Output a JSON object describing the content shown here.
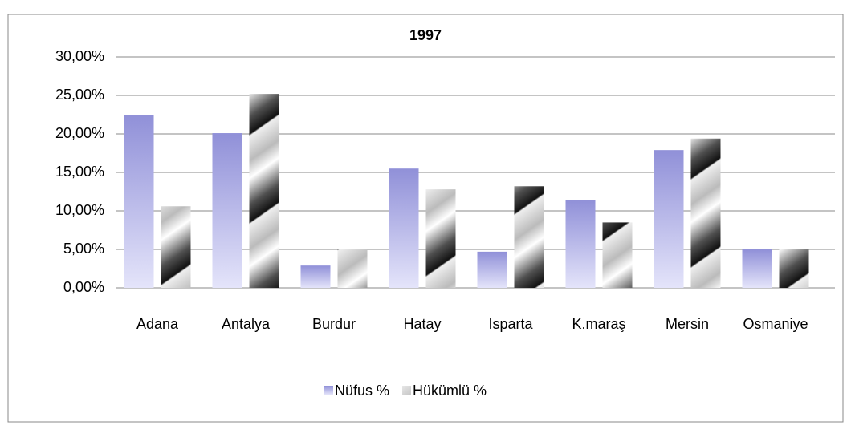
{
  "chart_data": {
    "type": "bar",
    "title": "1997",
    "categories": [
      "Adana",
      "Antalya",
      "Burdur",
      "Hatay",
      "Isparta",
      "K.maraş",
      "Mersin",
      "Osmaniye"
    ],
    "series": [
      {
        "name": "Nüfus %",
        "color": "#9090d8",
        "values": [
          22.5,
          20.1,
          2.9,
          15.5,
          4.7,
          11.4,
          17.9,
          5.0
        ]
      },
      {
        "name": "Hükümlü %",
        "color": "#505050",
        "values": [
          10.6,
          25.2,
          5.1,
          12.8,
          13.2,
          8.5,
          19.4,
          5.0
        ]
      }
    ],
    "ylim": [
      0,
      30
    ],
    "yticks": [
      {
        "value": 0,
        "label": "0,00%"
      },
      {
        "value": 5,
        "label": "5,00%"
      },
      {
        "value": 10,
        "label": "10,00%"
      },
      {
        "value": 15,
        "label": "15,00%"
      },
      {
        "value": 20,
        "label": "20,00%"
      },
      {
        "value": 25,
        "label": "25,00%"
      },
      {
        "value": 30,
        "label": "30,00%"
      }
    ],
    "grid": true,
    "legend": "bottom"
  }
}
